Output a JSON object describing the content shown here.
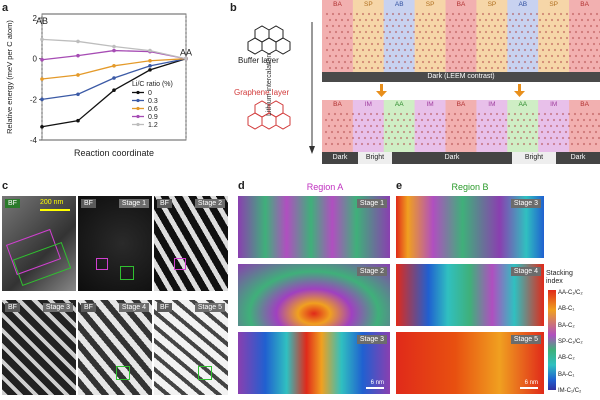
{
  "panel_letters": {
    "a": "a",
    "b": "b",
    "c": "c",
    "d": "d",
    "e": "e"
  },
  "panel_a": {
    "ylabel": "Relative energy (meV per C atom)",
    "xlabel": "Reaction coordinate",
    "ab_label": "AB",
    "aa_label": "AA",
    "legend_title": "Li/C ratio (%)",
    "colors": [
      "#111111",
      "#3b5aa6",
      "#e49a2a",
      "#a64cb4",
      "#bdbdbd"
    ]
  },
  "chart_data": {
    "type": "line",
    "x": [
      0,
      1,
      2,
      3,
      4
    ],
    "series": [
      {
        "name": "0",
        "values": [
          -3.35,
          -3.05,
          -1.55,
          -0.55,
          0
        ]
      },
      {
        "name": "0.3",
        "values": [
          -2.0,
          -1.75,
          -0.95,
          -0.35,
          0
        ]
      },
      {
        "name": "0.6",
        "values": [
          -1.0,
          -0.8,
          -0.35,
          -0.1,
          0
        ]
      },
      {
        "name": "0.9",
        "values": [
          -0.05,
          0.15,
          0.4,
          0.35,
          0
        ]
      },
      {
        "name": "1.2",
        "values": [
          0.95,
          0.85,
          0.6,
          0.4,
          0
        ]
      }
    ],
    "yticks": [
      -4,
      -2,
      0,
      2
    ],
    "ylim": [
      -4,
      2.2
    ],
    "xlabel": "Reaction coordinate",
    "ylabel": "Relative energy (meV per C atom)",
    "grid": false,
    "legend": "bottom-right"
  },
  "panel_b": {
    "buffer_label": "Buffer layer",
    "graphene_label": "Graphene layer",
    "arrow_label": "Lithium intercalation",
    "top_strip": [
      "BA",
      "SP",
      "AB",
      "SP",
      "BA",
      "SP",
      "AB",
      "SP",
      "BA"
    ],
    "top_bar": "Dark (LEEM contrast)",
    "bottom_strip": [
      "BA",
      "IM",
      "AA",
      "IM",
      "BA",
      "IM",
      "AA",
      "IM",
      "BA"
    ],
    "bottom_bar": [
      "Dark",
      "Bright",
      "Dark",
      "Bright",
      "Dark"
    ]
  },
  "panel_c": {
    "scale": "200 nm",
    "tiles": [
      {
        "left": "BF",
        "right": ""
      },
      {
        "left": "BF",
        "right": "Stage 1"
      },
      {
        "left": "BF",
        "right": "Stage 2"
      },
      {
        "left": "BF",
        "right": "Stage 3"
      },
      {
        "left": "BF",
        "right": "Stage 4"
      },
      {
        "left": "BF",
        "right": "Stage 5"
      }
    ]
  },
  "panel_d": {
    "title": "Region A",
    "stages": [
      "Stage 1",
      "Stage 2",
      "Stage 3"
    ],
    "scale": "6 nm"
  },
  "panel_e": {
    "title": "Region B",
    "stages": [
      "Stage 3",
      "Stage 4",
      "Stage 5"
    ],
    "scale": "6 nm",
    "legend_title": "Stacking\nindex",
    "legend_labels": [
      "AA-C₁/C₂",
      "AB-C₁",
      "BA-C₂",
      "SP-C₁/C₂",
      "AB-C₂",
      "BA-C₁",
      "IM-C₁/C₂"
    ]
  }
}
